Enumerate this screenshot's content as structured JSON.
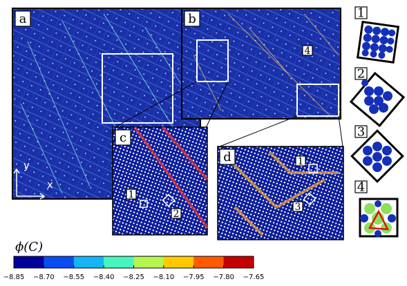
{
  "panels": [
    {
      "label": "a"
    },
    {
      "label": "b"
    },
    {
      "label": "c"
    },
    {
      "label": "d"
    }
  ],
  "axes": {
    "y": "y",
    "x": "x"
  },
  "markers": [
    "1",
    "2",
    "3",
    "4"
  ],
  "insets": [
    "1",
    "2",
    "3",
    "4"
  ],
  "colorbar": {
    "label": "ϕ(C)",
    "colors": [
      "#00009c",
      "#0a4cf0",
      "#14b4f5",
      "#48f5c0",
      "#b4f550",
      "#ffc800",
      "#ff5a00",
      "#c40000"
    ],
    "ticks": [
      {
        "value": -8.85,
        "label": "−8.85"
      },
      {
        "value": -8.7,
        "label": "−8.70"
      },
      {
        "value": -8.55,
        "label": "−8.55"
      },
      {
        "value": -8.4,
        "label": "−8.40"
      },
      {
        "value": -8.25,
        "label": "−8.25"
      },
      {
        "value": -8.1,
        "label": "−8.10"
      },
      {
        "value": -7.95,
        "label": "−7.95"
      },
      {
        "value": -7.8,
        "label": "−7.80"
      },
      {
        "value": -7.65,
        "label": "−7.65"
      }
    ]
  }
}
